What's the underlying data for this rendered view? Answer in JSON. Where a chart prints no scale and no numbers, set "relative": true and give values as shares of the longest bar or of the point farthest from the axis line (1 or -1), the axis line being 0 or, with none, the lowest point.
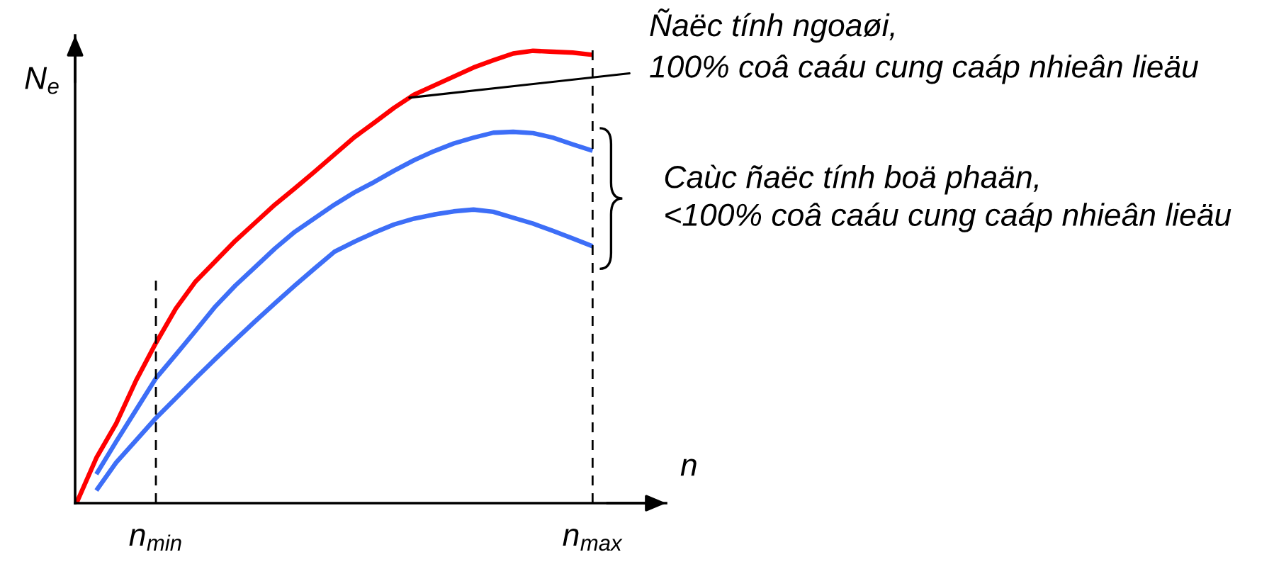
{
  "chart_data": {
    "type": "line",
    "relative": true,
    "xlabel": "n",
    "ylabel": "N$_{e}$",
    "line_style": "solid",
    "categories": [
      null,
      null,
      null,
      null,
      "n$_{min}$",
      null,
      null,
      null,
      null,
      null,
      null,
      null,
      null,
      null,
      null,
      null,
      null,
      null,
      null,
      null,
      null,
      null,
      null,
      null,
      null,
      null,
      "n$_{max}$"
    ],
    "series": [
      {
        "color": "#ff0000",
        "values": [
          0.0,
          0.1,
          0.176,
          0.271,
          0.354,
          0.43,
          0.49,
          0.535,
          0.58,
          0.62,
          0.66,
          0.696,
          0.733,
          0.771,
          0.809,
          0.841,
          0.874,
          0.903,
          0.923,
          0.943,
          0.963,
          0.979,
          0.994,
          1.0,
          0.998,
          0.996,
          0.991
        ]
      },
      {
        "color": "#3d6ef7",
        "values": [
          null,
          0.064,
          0.136,
          0.206,
          0.276,
          0.328,
          0.381,
          0.435,
          0.481,
          0.522,
          0.563,
          0.6,
          0.63,
          0.66,
          0.687,
          0.71,
          0.735,
          0.758,
          0.778,
          0.795,
          0.808,
          0.819,
          0.821,
          0.818,
          0.808,
          0.793,
          0.779
        ]
      },
      {
        "color": "#3d6ef7",
        "values": [
          null,
          0.028,
          0.09,
          0.139,
          0.188,
          0.232,
          0.276,
          0.319,
          0.361,
          0.402,
          0.442,
          0.481,
          0.519,
          0.556,
          0.578,
          0.598,
          0.616,
          0.629,
          0.638,
          0.645,
          0.649,
          0.644,
          0.631,
          0.618,
          0.602,
          0.585,
          0.568
        ]
      }
    ],
    "ref_lines": [
      {
        "axis": "x",
        "value": "n$_{min}$",
        "line_style": "dashed"
      },
      {
        "axis": "x",
        "value": "n$_{max}$",
        "line_style": "dashed"
      }
    ],
    "annotations": [
      "Ñaëc tính ngoaøi,\n100% coâ caáu cung caáp nhieân lieäu",
      "Caùc ñaëc tính boä phaän,\n<100% coâ caáu cung caáp nhieân lieäu"
    ]
  }
}
